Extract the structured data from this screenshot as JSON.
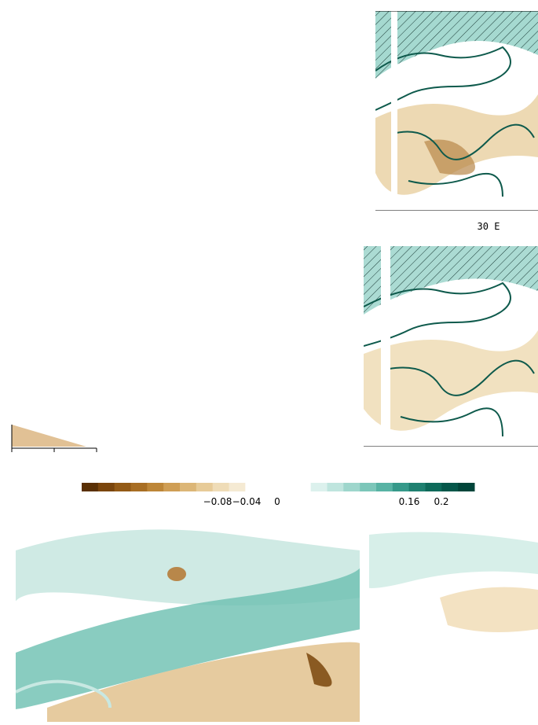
{
  "panels": [
    {
      "lon_label": "30 E"
    }
  ],
  "colorbar": {
    "tick_labels": [
      "−0.08",
      "−0.04",
      "0",
      "0.16",
      "0.2"
    ]
  }
}
